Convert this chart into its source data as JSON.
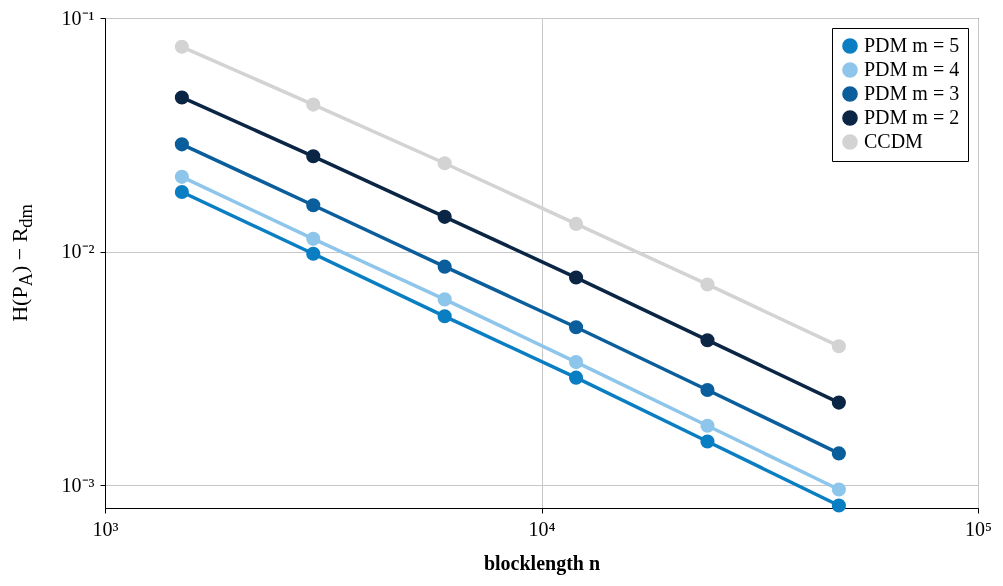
{
  "chart_data": {
    "type": "line",
    "xlabel": "blocklength n",
    "ylabel": "H(P$_{A}$) − R$_{dm}$",
    "log": "xy",
    "grid": true,
    "legend": "top right",
    "marker": "circle",
    "line_style": "solid",
    "x": [
      1500,
      3000,
      6000,
      12000,
      24000,
      48000
    ],
    "xlim": [
      1000,
      100000
    ],
    "xticks": [
      {
        "value": 1000,
        "label": "10³"
      },
      {
        "value": 10000,
        "label": "10⁴"
      },
      {
        "value": 100000,
        "label": "10⁵"
      }
    ],
    "ylim": [
      0.0008,
      0.1
    ],
    "yticks": [
      {
        "value": 0.001,
        "label": "10⁻³"
      },
      {
        "value": 0.01,
        "label": "10⁻²"
      },
      {
        "value": 0.1,
        "label": "10⁻¹"
      }
    ],
    "series": [
      {
        "name": "PDM m = 5",
        "color": "#0a7ec2",
        "values": [
          0.018,
          0.0098,
          0.00529,
          0.00289,
          0.00154,
          0.00082
        ]
      },
      {
        "name": "PDM m = 4",
        "color": "#8ec5ea",
        "values": [
          0.0209,
          0.01135,
          0.00625,
          0.00337,
          0.0018,
          0.00096
        ]
      },
      {
        "name": "PDM m = 3",
        "color": "#0a5e9c",
        "values": [
          0.0288,
          0.0158,
          0.00863,
          0.00475,
          0.00256,
          0.00137
        ]
      },
      {
        "name": "PDM m = 2",
        "color": "#0b2545",
        "values": [
          0.0457,
          0.0256,
          0.0141,
          0.00775,
          0.00418,
          0.00226
        ]
      },
      {
        "name": "CCDM",
        "color": "#d3d3d3",
        "values": [
          0.0753,
          0.0426,
          0.0239,
          0.01315,
          0.00724,
          0.00394
        ]
      }
    ]
  }
}
